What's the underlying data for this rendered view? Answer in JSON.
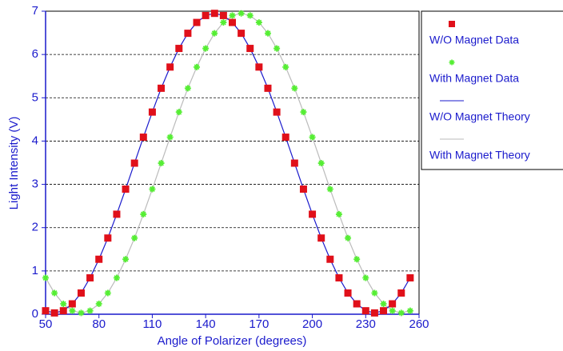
{
  "chart_data": {
    "type": "scatter",
    "x_label": "Angle of Polarizer (degrees)",
    "y_label": "Light Intensity (V)",
    "x": [
      50,
      55,
      60,
      65,
      70,
      75,
      80,
      85,
      90,
      95,
      100,
      105,
      110,
      115,
      120,
      125,
      130,
      135,
      140,
      145,
      150,
      155,
      160,
      165,
      170,
      175,
      180,
      185,
      190,
      195,
      200,
      205,
      210,
      215,
      220,
      225,
      230,
      235,
      240,
      245,
      250,
      255
    ],
    "series": [
      {
        "name": "W/O Magnet Data",
        "kind": "marker",
        "color": "#e0101a",
        "values": [
          0.08,
          0.03,
          0.08,
          0.24,
          0.49,
          0.84,
          1.27,
          1.76,
          2.31,
          2.89,
          3.49,
          4.09,
          4.67,
          5.22,
          5.71,
          6.14,
          6.49,
          6.74,
          6.9,
          6.95,
          6.9,
          6.74,
          6.49,
          6.14,
          5.71,
          5.22,
          4.67,
          4.09,
          3.49,
          2.89,
          2.31,
          1.76,
          1.27,
          0.84,
          0.49,
          0.24,
          0.08,
          0.03,
          0.08,
          0.24,
          0.49,
          0.84
        ]
      },
      {
        "name": "With Magnet Data",
        "kind": "star",
        "color": "#55ee33",
        "values": [
          0.84,
          0.49,
          0.24,
          0.08,
          0.03,
          0.08,
          0.24,
          0.49,
          0.84,
          1.27,
          1.76,
          2.31,
          2.89,
          3.49,
          4.09,
          4.67,
          5.22,
          5.71,
          6.14,
          6.49,
          6.74,
          6.9,
          6.95,
          6.9,
          6.74,
          6.49,
          6.14,
          5.71,
          5.22,
          4.67,
          4.09,
          3.49,
          2.89,
          2.31,
          1.76,
          1.27,
          0.84,
          0.49,
          0.24,
          0.08,
          0.03,
          0.08
        ]
      },
      {
        "name": "W/O Magnet Theory",
        "kind": "line",
        "color": "#1a1acc",
        "values": [
          0.08,
          0.03,
          0.08,
          0.24,
          0.49,
          0.84,
          1.27,
          1.76,
          2.31,
          2.89,
          3.49,
          4.09,
          4.67,
          5.22,
          5.71,
          6.14,
          6.49,
          6.74,
          6.9,
          6.95,
          6.9,
          6.74,
          6.49,
          6.14,
          5.71,
          5.22,
          4.67,
          4.09,
          3.49,
          2.89,
          2.31,
          1.76,
          1.27,
          0.84,
          0.49,
          0.24,
          0.08,
          0.03,
          0.08,
          0.24,
          0.49,
          0.84
        ]
      },
      {
        "name": "With Magnet Theory",
        "kind": "line",
        "color": "#bbbbbb",
        "values": [
          0.84,
          0.49,
          0.24,
          0.08,
          0.03,
          0.08,
          0.24,
          0.49,
          0.84,
          1.27,
          1.76,
          2.31,
          2.89,
          3.49,
          4.09,
          4.67,
          5.22,
          5.71,
          6.14,
          6.49,
          6.74,
          6.9,
          6.95,
          6.9,
          6.74,
          6.49,
          6.14,
          5.71,
          5.22,
          4.67,
          4.09,
          3.49,
          2.89,
          2.31,
          1.76,
          1.27,
          0.84,
          0.49,
          0.24,
          0.08,
          0.03,
          0.08
        ]
      }
    ],
    "xlim": [
      50,
      260
    ],
    "xticks": [
      50,
      80,
      110,
      140,
      170,
      200,
      230,
      260
    ],
    "ylim": [
      0,
      7
    ],
    "yticks": [
      0,
      1,
      2,
      3,
      4,
      5,
      6,
      7
    ],
    "grid": true,
    "legend": "right"
  }
}
